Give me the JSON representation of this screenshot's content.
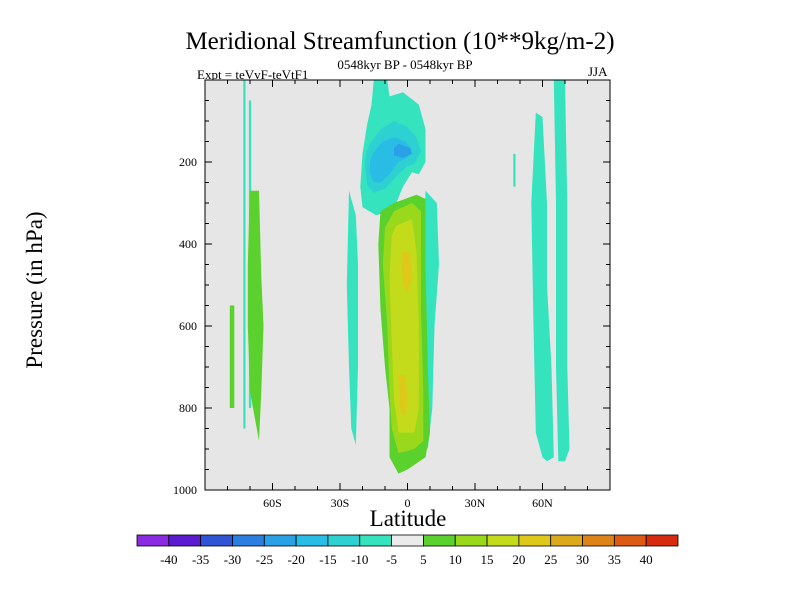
{
  "chart_data": {
    "type": "contour",
    "title": "Meridional Streamfunction (10**9kg/m-2)",
    "subtitle": "0548kyr BP - 0548kyr BP",
    "left_string": "Expt = teVvF-teVtF1",
    "right_string": "JJA",
    "xlabel": "Latitude",
    "ylabel": "Pressure (in hPa)",
    "xlim": [
      -90,
      90
    ],
    "ylim": [
      1000,
      0
    ],
    "x_ticks": [
      {
        "value": -60,
        "label": "60S"
      },
      {
        "value": -30,
        "label": "30S"
      },
      {
        "value": 0,
        "label": "0"
      },
      {
        "value": 30,
        "label": "30N"
      },
      {
        "value": 60,
        "label": "60N"
      }
    ],
    "y_ticks": [
      {
        "value": 200,
        "label": "200"
      },
      {
        "value": 400,
        "label": "400"
      },
      {
        "value": 600,
        "label": "600"
      },
      {
        "value": 800,
        "label": "800"
      },
      {
        "value": 1000,
        "label": "1000"
      }
    ],
    "background_color": "#e6e6e6",
    "colorbar": {
      "levels": [
        "-40",
        "-35",
        "-30",
        "-25",
        "-20",
        "-15",
        "-10",
        "-5",
        "5",
        "10",
        "15",
        "20",
        "25",
        "30",
        "35",
        "40"
      ],
      "colors": [
        "#8a2be2",
        "#5a1bd1",
        "#2f55d6",
        "#2b7ee0",
        "#2aa0e6",
        "#29bde6",
        "#2dd1d1",
        "#35e3bf",
        "#ebebeb",
        "#5ad12c",
        "#9ad81c",
        "#c4db1c",
        "#dec81a",
        "#dca91a",
        "#de8318",
        "#dd5a14",
        "#d72b10"
      ]
    },
    "features": [
      {
        "kind": "positive",
        "level": 5,
        "points": [
          [
            -79,
            550
          ],
          [
            -77,
            550
          ],
          [
            -77,
            800
          ],
          [
            -79,
            800
          ]
        ]
      },
      {
        "kind": "negative",
        "level": -5,
        "points": [
          [
            -73,
            0
          ],
          [
            -72,
            0
          ],
          [
            -72,
            850
          ],
          [
            -73,
            850
          ]
        ]
      },
      {
        "kind": "negative",
        "level": -5,
        "points": [
          [
            -70.5,
            50
          ],
          [
            -69.5,
            50
          ],
          [
            -69.5,
            800
          ],
          [
            -70.5,
            800
          ]
        ]
      },
      {
        "kind": "positive",
        "level": 5,
        "points": [
          [
            -70,
            270
          ],
          [
            -66,
            270
          ],
          [
            -65,
            480
          ],
          [
            -64,
            600
          ],
          [
            -65,
            760
          ],
          [
            -66,
            880
          ],
          [
            -68,
            820
          ],
          [
            -70,
            760
          ],
          [
            -71,
            600
          ],
          [
            -71,
            450
          ],
          [
            -70.5,
            350
          ]
        ]
      },
      {
        "kind": "negative",
        "level": -5,
        "points": [
          [
            -26,
            270
          ],
          [
            -23,
            330
          ],
          [
            -22,
            450
          ],
          [
            -22,
            700
          ],
          [
            -23,
            890
          ],
          [
            -25,
            850
          ],
          [
            -26,
            700
          ],
          [
            -27,
            500
          ]
        ]
      },
      {
        "kind": "negative",
        "level": -5,
        "points": [
          [
            -15,
            0
          ],
          [
            -9,
            0
          ],
          [
            -8,
            40
          ],
          [
            -2,
            30
          ],
          [
            5,
            60
          ],
          [
            8,
            120
          ],
          [
            8,
            200
          ],
          [
            5,
            230
          ],
          [
            2,
            225
          ],
          [
            -2,
            260
          ],
          [
            -5,
            300
          ],
          [
            -8,
            320
          ],
          [
            -14,
            330
          ],
          [
            -20,
            310
          ],
          [
            -21,
            260
          ],
          [
            -20,
            180
          ],
          [
            -18,
            110
          ],
          [
            -16,
            60
          ]
        ]
      },
      {
        "kind": "negative",
        "level": -10,
        "points": [
          [
            -16,
            150
          ],
          [
            -12,
            120
          ],
          [
            -6,
            100
          ],
          [
            0,
            115
          ],
          [
            4,
            140
          ],
          [
            6,
            175
          ],
          [
            3,
            205
          ],
          [
            0,
            210
          ],
          [
            -4,
            230
          ],
          [
            -10,
            265
          ],
          [
            -15,
            275
          ],
          [
            -18,
            255
          ],
          [
            -19,
            205
          ],
          [
            -18,
            170
          ]
        ]
      },
      {
        "kind": "negative",
        "level": -15,
        "points": [
          [
            -15,
            175
          ],
          [
            -11,
            150
          ],
          [
            -6,
            140
          ],
          [
            -1,
            150
          ],
          [
            2,
            170
          ],
          [
            0,
            190
          ],
          [
            -4,
            200
          ],
          [
            -8,
            230
          ],
          [
            -12,
            250
          ],
          [
            -15,
            250
          ],
          [
            -17,
            225
          ],
          [
            -16.5,
            195
          ]
        ]
      },
      {
        "kind": "negative",
        "level": -20,
        "points": [
          [
            -4,
            155
          ],
          [
            1,
            165
          ],
          [
            2,
            180
          ],
          [
            -2,
            190
          ],
          [
            -6,
            185
          ],
          [
            -6,
            165
          ]
        ]
      },
      {
        "kind": "negative",
        "level": -5,
        "points": [
          [
            8,
            270
          ],
          [
            13,
            300
          ],
          [
            14,
            450
          ],
          [
            12,
            600
          ],
          [
            11,
            800
          ],
          [
            9,
            900
          ],
          [
            7,
            870
          ],
          [
            7,
            500
          ]
        ]
      },
      {
        "kind": "positive",
        "level": 5,
        "points": [
          [
            -6,
            300
          ],
          [
            4,
            280
          ],
          [
            8,
            290
          ],
          [
            8,
            450
          ],
          [
            9,
            700
          ],
          [
            10,
            860
          ],
          [
            8,
            920
          ],
          [
            0,
            950
          ],
          [
            -4,
            960
          ],
          [
            -8,
            920
          ],
          [
            -8,
            800
          ],
          [
            -10,
            700
          ],
          [
            -12,
            560
          ],
          [
            -13,
            400
          ],
          [
            -12,
            320
          ]
        ]
      },
      {
        "kind": "positive",
        "level": 10,
        "points": [
          [
            -6,
            320
          ],
          [
            2,
            300
          ],
          [
            6,
            320
          ],
          [
            6,
            560
          ],
          [
            7,
            760
          ],
          [
            7,
            880
          ],
          [
            3,
            900
          ],
          [
            -4,
            910
          ],
          [
            -7,
            850
          ],
          [
            -8,
            760
          ],
          [
            -9,
            600
          ],
          [
            -11,
            450
          ],
          [
            -10,
            360
          ]
        ]
      },
      {
        "kind": "positive",
        "level": 15,
        "points": [
          [
            -5,
            355
          ],
          [
            2,
            340
          ],
          [
            4,
            420
          ],
          [
            5,
            600
          ],
          [
            5,
            800
          ],
          [
            3,
            860
          ],
          [
            -4,
            860
          ],
          [
            -6,
            780
          ],
          [
            -7,
            640
          ],
          [
            -8,
            480
          ],
          [
            -7,
            380
          ]
        ]
      },
      {
        "kind": "positive",
        "level": 20,
        "points": [
          [
            -3,
            420
          ],
          [
            1,
            420
          ],
          [
            2,
            480
          ],
          [
            0,
            520
          ],
          [
            -2,
            500
          ]
        ]
      },
      {
        "kind": "positive",
        "level": 20,
        "points": [
          [
            -4,
            720
          ],
          [
            -1,
            720
          ],
          [
            0,
            780
          ],
          [
            -1,
            820
          ],
          [
            -3,
            810
          ]
        ]
      },
      {
        "kind": "negative",
        "level": -5,
        "points": [
          [
            47,
            180
          ],
          [
            48,
            180
          ],
          [
            48,
            260
          ],
          [
            47,
            260
          ]
        ]
      },
      {
        "kind": "negative",
        "level": -5,
        "points": [
          [
            57,
            80
          ],
          [
            60,
            90
          ],
          [
            62,
            300
          ],
          [
            62,
            500
          ],
          [
            64,
            700
          ],
          [
            65,
            920
          ],
          [
            62,
            930
          ],
          [
            60,
            920
          ],
          [
            57,
            860
          ],
          [
            56,
            600
          ],
          [
            55,
            300
          ]
        ]
      },
      {
        "kind": "negative",
        "level": -5,
        "points": [
          [
            65,
            0
          ],
          [
            70,
            0
          ],
          [
            71,
            300
          ],
          [
            71,
            700
          ],
          [
            72,
            900
          ],
          [
            70,
            930
          ],
          [
            67,
            930
          ],
          [
            66,
            700
          ],
          [
            66,
            300
          ]
        ]
      }
    ]
  }
}
